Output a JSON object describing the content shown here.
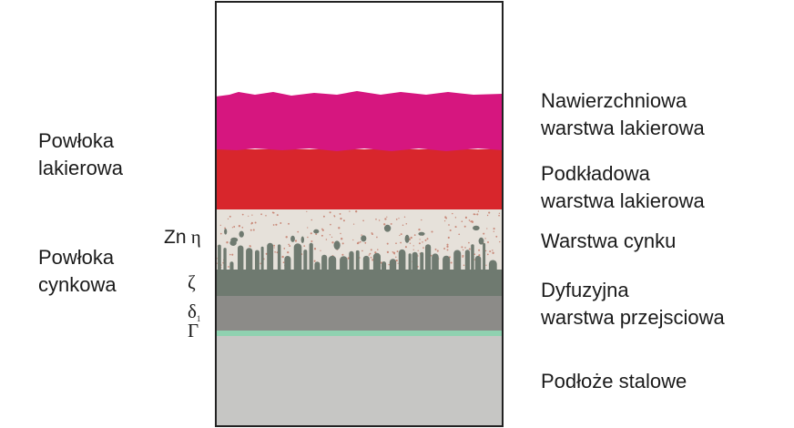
{
  "left_labels": {
    "paint_coating": [
      "Powłoka",
      "lakierowa"
    ],
    "zinc_coating": [
      "Powłoka",
      "cynkowa"
    ]
  },
  "phase_labels": {
    "zn_eta_prefix": "Zn",
    "eta": "η",
    "zeta": "ζ",
    "delta": "δ",
    "delta_subscript": "1",
    "gamma": "Γ"
  },
  "right_labels": {
    "top_coat": [
      "Nawierzchniowa",
      "warstwa lakierowa"
    ],
    "primer_coat": [
      "Podkładowa",
      "warstwa lakierowa"
    ],
    "zinc_layer": [
      "Warstwa cynku"
    ],
    "diffusion_layer": [
      "Dyfuzyjna",
      "warstwa przejsciowa"
    ],
    "steel_substrate": [
      "Podłoże stalowe"
    ]
  },
  "colors": {
    "top_coat": "#d6167f",
    "primer_coat": "#d8262c",
    "zinc_eta": "#e6e1da",
    "zinc_dots": "#c98a7a",
    "zeta": "#6f7a70",
    "delta": "#8c8b88",
    "gamma": "#8fd1b0",
    "steel": "#c6c6c4",
    "border": "#222222"
  }
}
